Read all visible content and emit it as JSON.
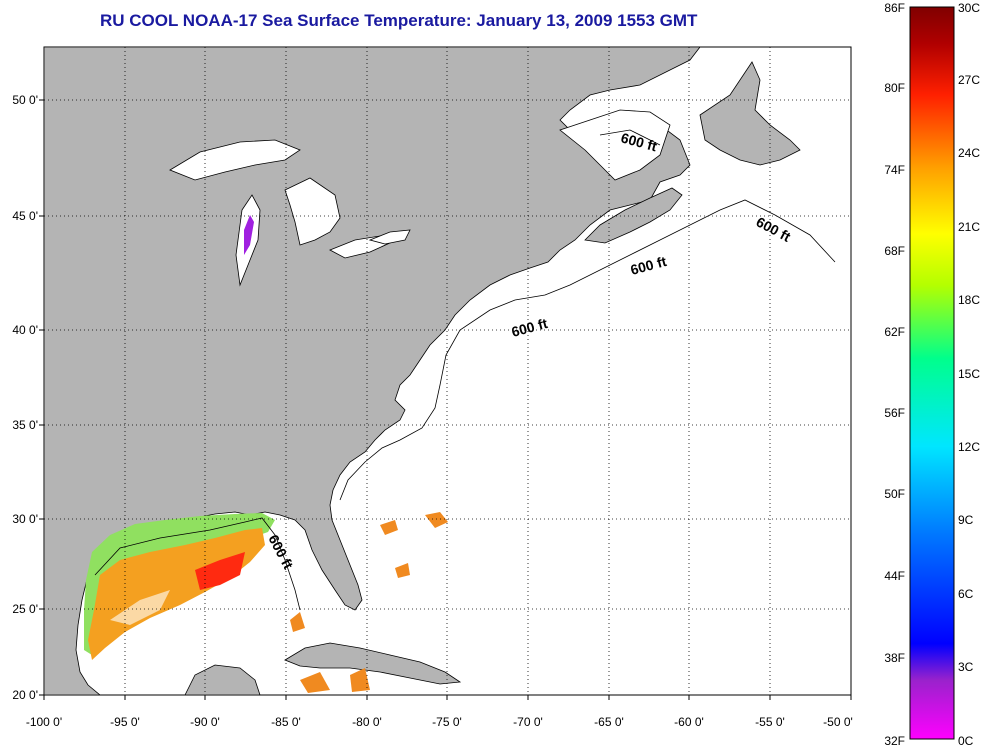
{
  "title": "RU COOL  NOAA-17  Sea Surface Temperature:  January 13, 2009 1553 GMT",
  "map": {
    "lon_range": [
      -100,
      -50
    ],
    "lat_range": [
      20,
      52.5
    ],
    "lon_ticks": [
      "-100 0'",
      "-95 0'",
      "-90 0'",
      "-85 0'",
      "-80 0'",
      "-75 0'",
      "-70 0'",
      "-65 0'",
      "-60 0'",
      "-55 0'",
      "-50 0'"
    ],
    "lat_ticks": [
      "50 0'",
      "45 0'",
      "40 0'",
      "35 0'",
      "30 0'",
      "25 0'",
      "20 0'"
    ],
    "contour_labels": [
      "600 ft",
      "600 ft",
      "600 ft",
      "600 ft",
      "600 ft"
    ],
    "land_color": "#b4b4b4",
    "grid": "dotted"
  },
  "colorbar": {
    "fahrenheit": [
      "86F",
      "80F",
      "74F",
      "68F",
      "62F",
      "56F",
      "50F",
      "44F",
      "38F",
      "32F"
    ],
    "celsius": [
      "30C",
      "27C",
      "24C",
      "21C",
      "18C",
      "15C",
      "12C",
      "9C",
      "6C",
      "3C",
      "0C"
    ],
    "colors": [
      "#ff00ff",
      "#9a22cc",
      "#0000ff",
      "#0078ff",
      "#00e6ff",
      "#00ff8c",
      "#b4ff00",
      "#ffff00",
      "#ffa000",
      "#ff2000",
      "#b00000",
      "#800000"
    ]
  }
}
